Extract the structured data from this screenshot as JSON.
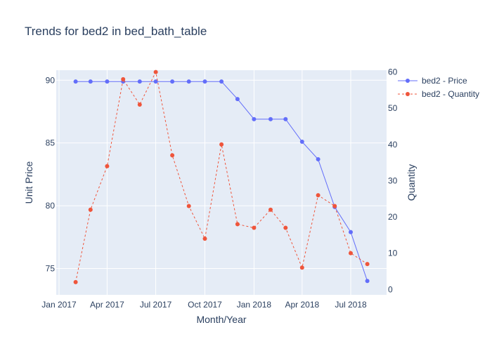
{
  "chart_data": {
    "type": "line",
    "title": "Trends for bed2 in bed_bath_table",
    "xlabel": "Month/Year",
    "ylabel": "Unit Price",
    "y2label": "Quantity",
    "x_ticks": [
      "Jan 2017",
      "Apr 2017",
      "Jul 2017",
      "Oct 2017",
      "Jan 2018",
      "Apr 2018",
      "Jul 2018"
    ],
    "x": [
      "2017-02",
      "2017-03",
      "2017-04",
      "2017-05",
      "2017-06",
      "2017-07",
      "2017-08",
      "2017-09",
      "2017-10",
      "2017-11",
      "2017-12",
      "2018-01",
      "2018-02",
      "2018-03",
      "2018-04",
      "2018-05",
      "2018-06",
      "2018-07",
      "2018-08"
    ],
    "y_ticks": [
      75,
      80,
      85,
      90
    ],
    "y2_ticks": [
      0,
      10,
      20,
      30,
      40,
      50,
      60
    ],
    "ylim": [
      72.9,
      90.8
    ],
    "y2lim": [
      -1.5,
      60.5
    ],
    "grid": true,
    "legend_position": "top-right",
    "series": [
      {
        "name": "bed2 - Price",
        "axis": "left",
        "color": "#636efa",
        "dash": "solid",
        "values": [
          89.9,
          89.9,
          89.9,
          89.9,
          89.9,
          89.9,
          89.9,
          89.9,
          89.9,
          89.9,
          88.5,
          86.9,
          86.9,
          86.9,
          85.1,
          83.7,
          79.9,
          77.9,
          74.0
        ]
      },
      {
        "name": "bed2 - Quantity",
        "axis": "right",
        "color": "#ef553b",
        "dash": "dash",
        "values": [
          2,
          22,
          34,
          58,
          51,
          60,
          37,
          23,
          14,
          40,
          18,
          17,
          22,
          17,
          6,
          26,
          23,
          10,
          7
        ]
      }
    ]
  }
}
